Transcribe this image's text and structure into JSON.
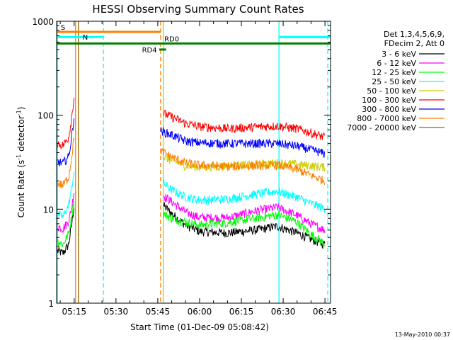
{
  "chart_data": {
    "type": "line",
    "title": "HESSI Observing Summary Count Rates",
    "xlabel": "Start Time (01-Dec-09 05:08:42)",
    "ylabel_main": "Count Rate (s",
    "ylabel_sup1": "-1",
    "ylabel_mid": " detector",
    "ylabel_sup2": "-1",
    "ylabel_end": ")",
    "y_scale": "log",
    "ylim": [
      1,
      1000
    ],
    "xlim": [
      "05:08:42",
      "06:47:00"
    ],
    "x_ticks": [
      "05:15",
      "05:30",
      "05:45",
      "06:00",
      "06:15",
      "06:30",
      "06:45"
    ],
    "y_ticks": [
      {
        "value": 1,
        "label": "1"
      },
      {
        "value": 10,
        "label": "10"
      },
      {
        "value": 100,
        "label": "100"
      },
      {
        "value": 1000,
        "label": "1000"
      }
    ],
    "legend": {
      "placement": "right",
      "header": [
        "Det 1,3,4,5,6,9,",
        "FDecim 2, Att 0"
      ]
    },
    "series": [
      {
        "name": "3 - 6 keV",
        "color": "#000000",
        "pre": [
          [
            "05:09",
            3.6
          ],
          [
            "05:11",
            3.4
          ],
          [
            "05:13",
            4.2
          ],
          [
            "05:14",
            6.5
          ],
          [
            "05:15",
            11
          ]
        ],
        "post": [
          [
            "05:47",
            11
          ],
          [
            "05:50",
            9
          ],
          [
            "05:55",
            6.8
          ],
          [
            "06:00",
            5.8
          ],
          [
            "06:10",
            5.6
          ],
          [
            "06:20",
            6.0
          ],
          [
            "06:28",
            6.6
          ],
          [
            "06:35",
            5.6
          ],
          [
            "06:40",
            4.8
          ],
          [
            "06:45",
            4.2
          ]
        ]
      },
      {
        "name": "6 - 12 keV",
        "color": "#ff00ff",
        "pre": [
          [
            "05:09",
            6.6
          ],
          [
            "05:11",
            6.2
          ],
          [
            "05:13",
            7.5
          ],
          [
            "05:14",
            10
          ],
          [
            "05:15",
            16
          ]
        ],
        "post": [
          [
            "05:47",
            14
          ],
          [
            "05:50",
            12
          ],
          [
            "05:55",
            9.3
          ],
          [
            "06:00",
            8.2
          ],
          [
            "06:10",
            8.1
          ],
          [
            "06:20",
            9.6
          ],
          [
            "06:28",
            10.5
          ],
          [
            "06:35",
            8.6
          ],
          [
            "06:40",
            7.0
          ],
          [
            "06:45",
            6.0
          ]
        ]
      },
      {
        "name": "12 - 25 keV",
        "color": "#00ff00",
        "pre": [
          [
            "05:09",
            4.6
          ],
          [
            "05:11",
            4.2
          ],
          [
            "05:13",
            5.5
          ],
          [
            "05:14",
            8
          ],
          [
            "05:15",
            13
          ]
        ],
        "post": [
          [
            "05:47",
            9
          ],
          [
            "05:50",
            8
          ],
          [
            "05:55",
            7.3
          ],
          [
            "06:00",
            6.8
          ],
          [
            "06:10",
            7.2
          ],
          [
            "06:20",
            8.0
          ],
          [
            "06:28",
            8.8
          ],
          [
            "06:35",
            7.3
          ],
          [
            "06:40",
            5.4
          ],
          [
            "06:45",
            4.3
          ]
        ]
      },
      {
        "name": "25 - 50 keV",
        "color": "#00ffff",
        "pre": [
          [
            "05:09",
            8.8
          ],
          [
            "05:11",
            8.3
          ],
          [
            "05:13",
            11
          ],
          [
            "05:14",
            16
          ],
          [
            "05:15",
            26
          ]
        ],
        "post": [
          [
            "05:47",
            19
          ],
          [
            "05:50",
            16
          ],
          [
            "05:55",
            13.5
          ],
          [
            "06:00",
            12.5
          ],
          [
            "06:10",
            12.8
          ],
          [
            "06:20",
            14.5
          ],
          [
            "06:28",
            15.5
          ],
          [
            "06:35",
            13.5
          ],
          [
            "06:40",
            11.5
          ],
          [
            "06:45",
            10.2
          ]
        ]
      },
      {
        "name": "50 - 100 keV",
        "color": "#cccc00",
        "pre": [],
        "post": [
          [
            "05:47",
            36
          ],
          [
            "05:55",
            29
          ],
          [
            "06:00",
            28
          ],
          [
            "06:10",
            29
          ],
          [
            "06:20",
            30
          ],
          [
            "06:28",
            31
          ],
          [
            "06:35",
            30
          ],
          [
            "06:40",
            29
          ],
          [
            "06:45",
            28
          ]
        ]
      },
      {
        "name": "100 - 300 keV",
        "color": "#ff0000",
        "pre": [
          [
            "05:09",
            50
          ],
          [
            "05:11",
            48
          ],
          [
            "05:13",
            58
          ],
          [
            "05:14",
            90
          ],
          [
            "05:15",
            160
          ]
        ],
        "post": [
          [
            "05:47",
            105
          ],
          [
            "05:50",
            96
          ],
          [
            "05:55",
            82
          ],
          [
            "06:00",
            76
          ],
          [
            "06:10",
            72
          ],
          [
            "06:20",
            75
          ],
          [
            "06:28",
            77
          ],
          [
            "06:35",
            72
          ],
          [
            "06:40",
            65
          ],
          [
            "06:45",
            58
          ]
        ]
      },
      {
        "name": "300 - 800 keV",
        "color": "#0000ff",
        "pre": [
          [
            "05:09",
            32
          ],
          [
            "05:11",
            31
          ],
          [
            "05:13",
            36
          ],
          [
            "05:14",
            56
          ],
          [
            "05:15",
            100
          ]
        ],
        "post": [
          [
            "05:46",
            68
          ],
          [
            "05:50",
            62
          ],
          [
            "05:55",
            53
          ],
          [
            "06:00",
            51
          ],
          [
            "06:10",
            50
          ],
          [
            "06:20",
            50
          ],
          [
            "06:28",
            50
          ],
          [
            "06:35",
            47
          ],
          [
            "06:40",
            43
          ],
          [
            "06:45",
            39
          ]
        ]
      },
      {
        "name": "800 - 7000 keV",
        "color": "#ff8000",
        "pre": [
          [
            "05:09",
            19
          ],
          [
            "05:11",
            18
          ],
          [
            "05:13",
            22
          ],
          [
            "05:14",
            34
          ],
          [
            "05:15",
            60
          ]
        ],
        "post": [
          [
            "05:46",
            42
          ],
          [
            "05:50",
            36
          ],
          [
            "05:55",
            31
          ],
          [
            "06:00",
            29.5
          ],
          [
            "06:10",
            28.5
          ],
          [
            "06:20",
            29
          ],
          [
            "06:28",
            29.5
          ],
          [
            "06:35",
            26.5
          ],
          [
            "06:40",
            23
          ],
          [
            "06:45",
            20
          ]
        ]
      },
      {
        "name": "7000 - 20000 keV",
        "color": "#996600",
        "pre": [],
        "post": []
      }
    ],
    "flag_bars": [
      {
        "label": "S",
        "color": "#ff8000",
        "y": 770,
        "x0": "05:08:42",
        "x1": "05:46:00",
        "label_at": "05:11",
        "label_side": "above"
      },
      {
        "label": "N",
        "color": "#00ffff",
        "y": 680,
        "x0": "05:08:42",
        "x1": "05:25:30",
        "label_at": "05:19",
        "label_side": "on"
      },
      {
        "label": "",
        "color": "#00ffff",
        "y": 680,
        "x0": "06:28:30",
        "x1": "06:47:00",
        "label_at": "",
        "label_side": "none"
      },
      {
        "label": "",
        "color": "#008000",
        "y": 580,
        "x0": "05:08:42",
        "x1": "06:47:00",
        "label_at": "",
        "label_side": "none"
      },
      {
        "label": "RD4",
        "color": "#008000",
        "y": 500,
        "x0": "05:45:30",
        "x1": "05:48:00",
        "label_at": "05:42",
        "label_side": "on"
      },
      {
        "label": "RD0",
        "color": "#008000",
        "y": 580,
        "x0": "05:47:00",
        "x1": "05:47:00",
        "label_at": "05:50",
        "label_side": "above"
      }
    ],
    "vlines": [
      {
        "t": "05:09:00",
        "color": "#00ffff",
        "style": "solid"
      },
      {
        "t": "05:25:30",
        "color": "#00ffff",
        "style": "dashed"
      },
      {
        "t": "05:46:00",
        "color": "#ff8000",
        "style": "dashed"
      },
      {
        "t": "06:28:30",
        "color": "#00ffff",
        "style": "solid"
      },
      {
        "t": "06:46:00",
        "color": "#00ffff",
        "style": "dashed"
      },
      {
        "t": "05:15:30",
        "color": "#ff8000",
        "style": "solid"
      },
      {
        "t": "05:16:30",
        "color": "#996600",
        "style": "solid"
      },
      {
        "t": "05:47:00",
        "color": "#cccc00",
        "style": "solid"
      }
    ]
  },
  "footer": {
    "timestamp": "13-May-2010 00:37"
  }
}
